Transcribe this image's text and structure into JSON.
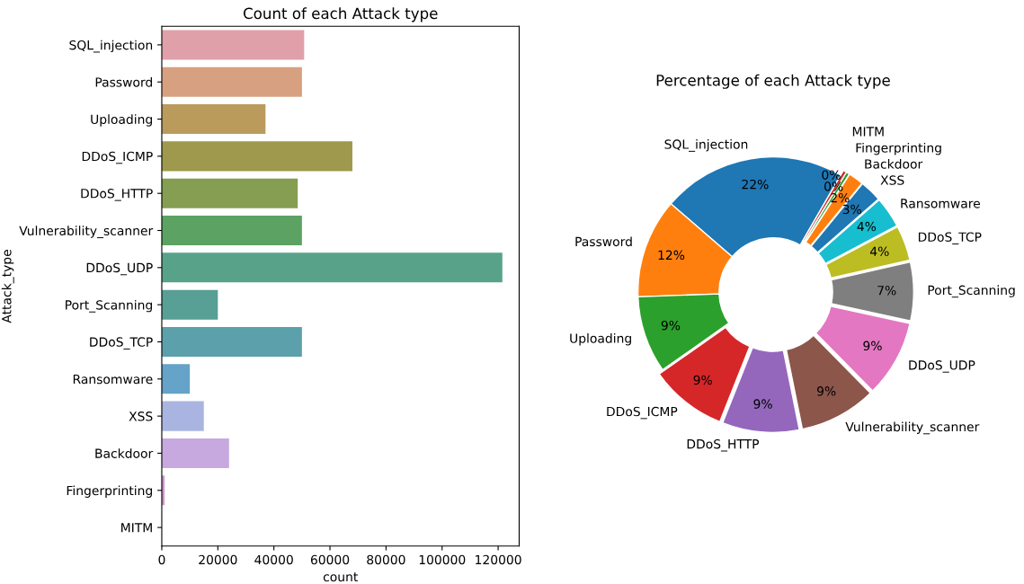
{
  "chart_data": [
    {
      "type": "bar",
      "title": "Count of each Attack type",
      "xlabel": "count",
      "ylabel": "Attack_type",
      "orientation": "horizontal",
      "categories": [
        "SQL_injection",
        "Password",
        "Uploading",
        "DDoS_ICMP",
        "DDoS_HTTP",
        "Vulnerability_scanner",
        "DDoS_UDP",
        "Port_Scanning",
        "DDoS_TCP",
        "Ransomware",
        "XSS",
        "Backdoor",
        "Fingerprinting",
        "MITM"
      ],
      "values": [
        50800,
        50000,
        37000,
        68000,
        48500,
        50000,
        121500,
        20000,
        50000,
        10000,
        15000,
        24000,
        1000,
        null
      ],
      "colors": [
        "#ea96a3",
        "#e59c72",
        "#c9a04d",
        "#aba53f",
        "#8aaa46",
        "#4fae5a",
        "#4cae8e",
        "#4cab9f",
        "#4eaab7",
        "#55a7d8",
        "#a1aee9",
        "#c8a0e8",
        "#d88cd6",
        "#e891c0"
      ],
      "xlim": [
        0,
        127500
      ],
      "xticks": [
        0,
        20000,
        40000,
        60000,
        80000,
        100000,
        120000
      ],
      "grid": false,
      "legend": false
    },
    {
      "type": "donut",
      "title": "Percentage of each Attack type",
      "categories": [
        "SQL_injection",
        "Password",
        "Uploading",
        "DDoS_ICMP",
        "DDoS_HTTP",
        "Vulnerability_scanner",
        "DDoS_UDP",
        "Port_Scanning",
        "DDoS_TCP",
        "Ransomware",
        "XSS",
        "Backdoor",
        "Fingerprinting",
        "MITM"
      ],
      "values": [
        22.0,
        11.9,
        9.2,
        9.2,
        9.2,
        9.2,
        9.2,
        7.0,
        4.2,
        3.7,
        2.6,
        1.8,
        0.4,
        0.4
      ],
      "value_labels": [
        "22%",
        "12%",
        "9%",
        "9%",
        "9%",
        "9%",
        "9%",
        "7%",
        "4%",
        "4%",
        "3%",
        "2%",
        "0%",
        "0%"
      ],
      "colors": [
        "#1f77b4",
        "#ff7f0e",
        "#2ca02c",
        "#d62728",
        "#9467bd",
        "#8c564b",
        "#e377c2",
        "#7f7f7f",
        "#bcbd22",
        "#17becf",
        "#1f77b4",
        "#ff7f0e",
        "#2ca02c",
        "#d62728"
      ],
      "legend": false
    }
  ]
}
